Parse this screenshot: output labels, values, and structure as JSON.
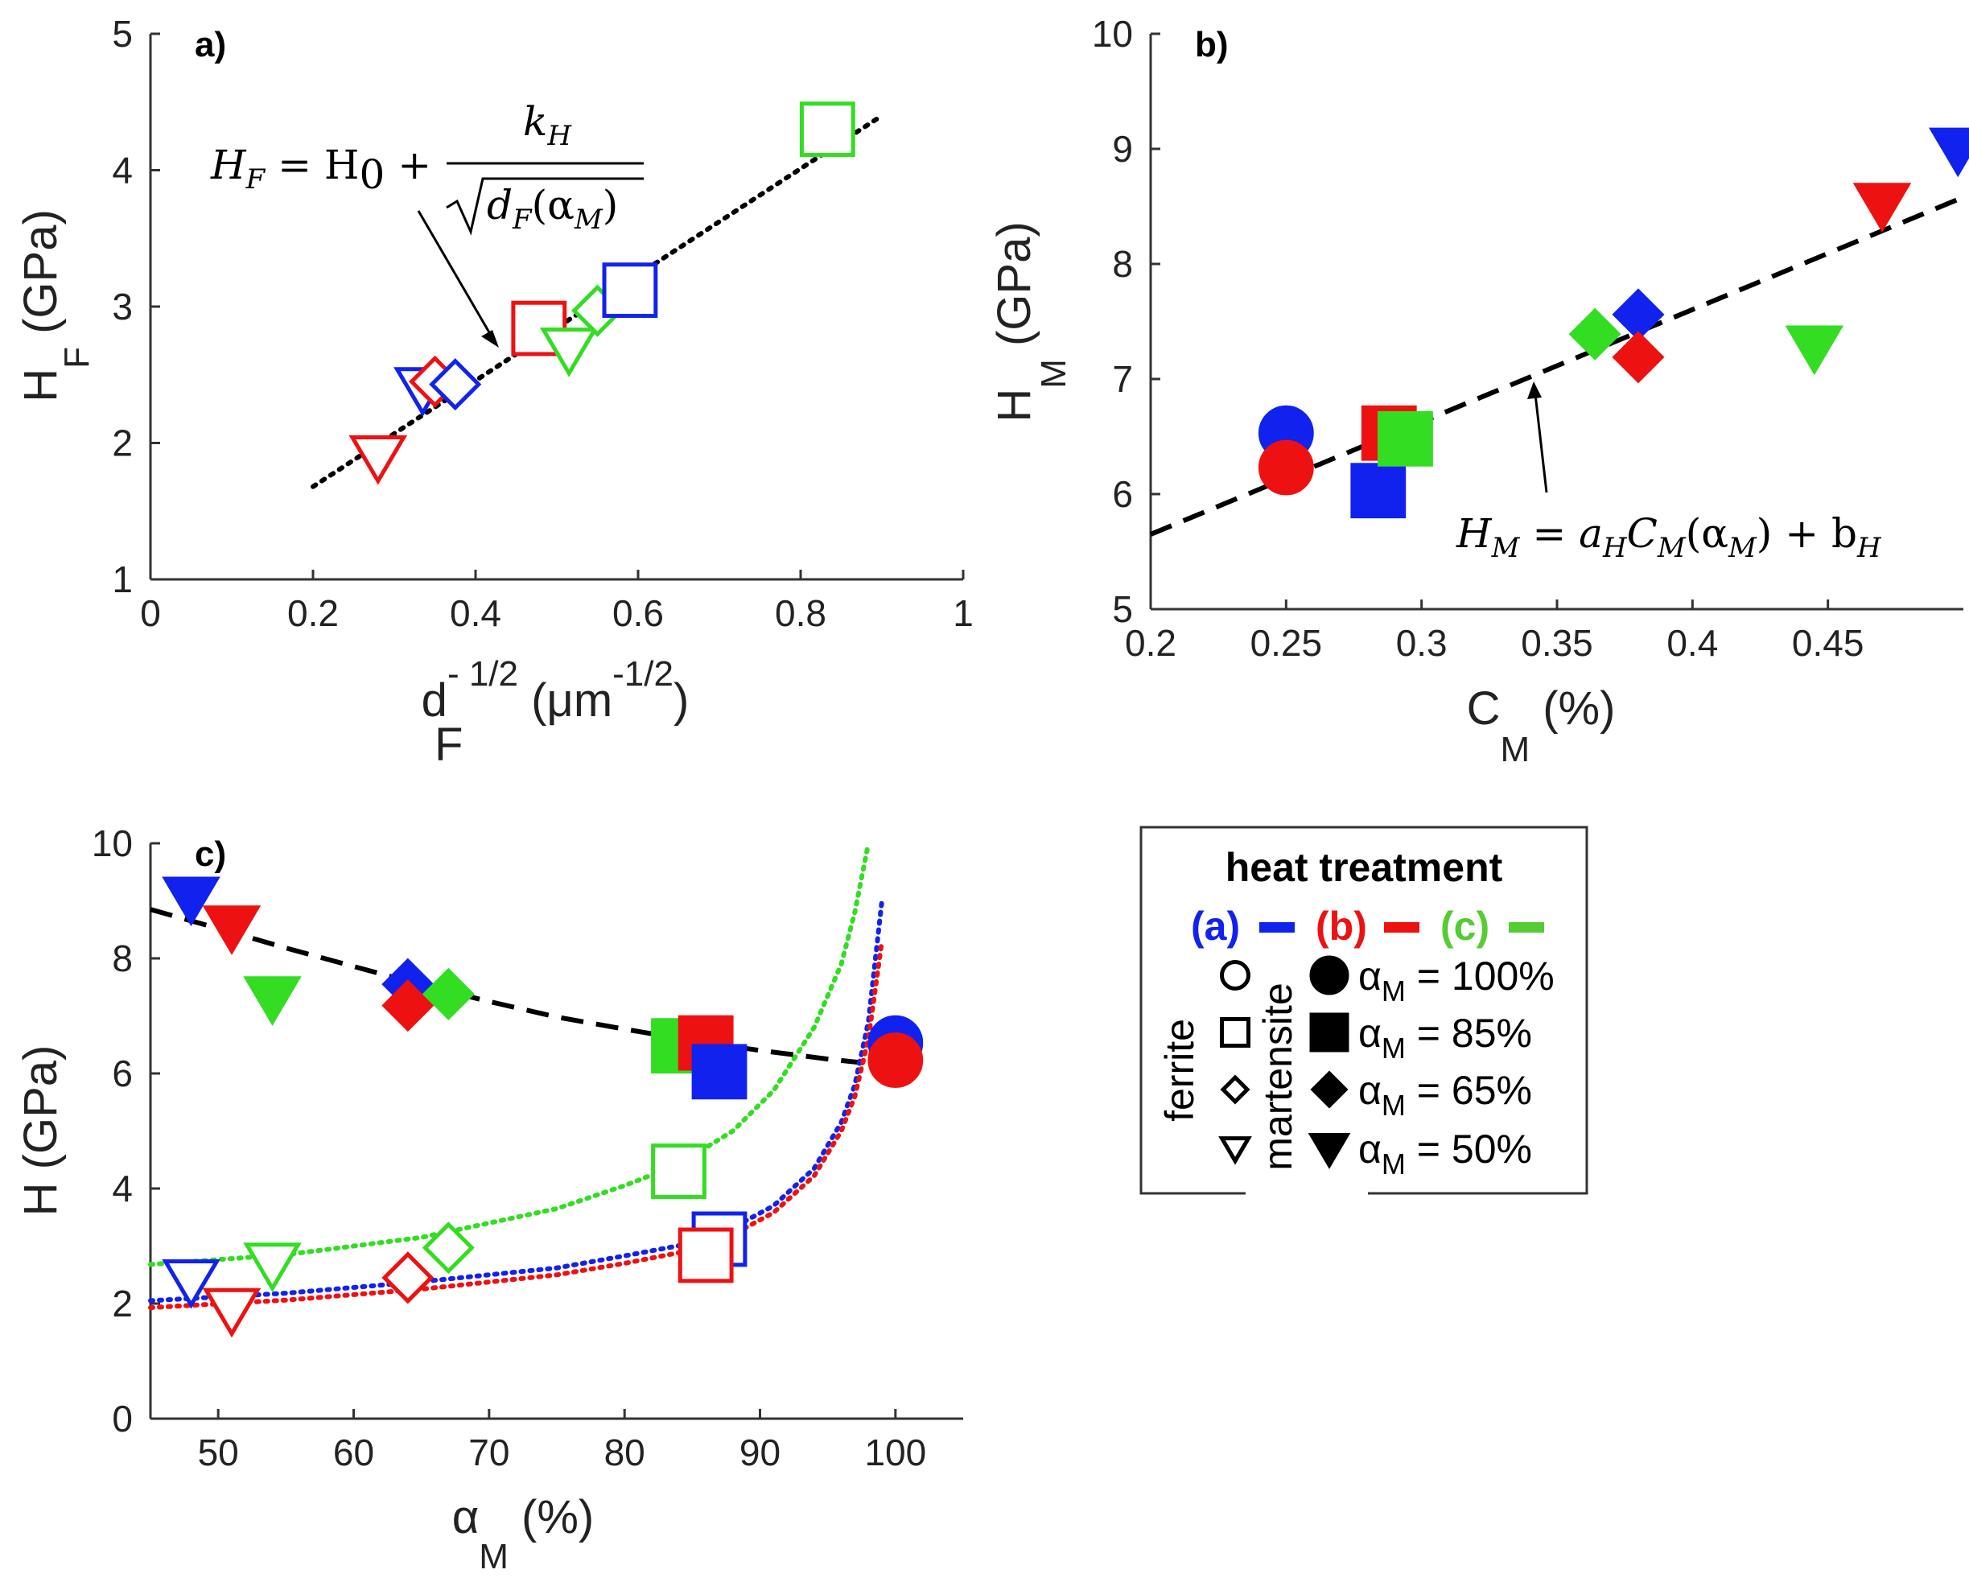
{
  "chart_data": [
    {
      "id": "a",
      "type": "scatter",
      "panel_label": "a)",
      "xlabel": {
        "main": "d",
        "sub": "F",
        "sup": "- 1/2",
        "unit_open": " (μm",
        "unit_sup": "-1/2",
        "unit_close": ")"
      },
      "ylabel": {
        "main": "H",
        "sub": "F",
        "unit": " (GPa)"
      },
      "xlim": [
        0,
        1
      ],
      "ylim": [
        1,
        5
      ],
      "xticks": [
        0,
        0.2,
        0.4,
        0.6,
        0.8,
        1
      ],
      "yticks": [
        1,
        2,
        3,
        4,
        5
      ],
      "xtick_labels": [
        "0",
        "0.2",
        "0.4",
        "0.6",
        "0.8",
        "1"
      ],
      "ytick_labels": [
        "1",
        "2",
        "3",
        "4",
        "5"
      ],
      "fit_line": {
        "style": "dotted",
        "x": [
          0.2,
          0.9
        ],
        "y": [
          1.68,
          4.4
        ]
      },
      "equation": {
        "lhs": "H",
        "lhs_sub": "F",
        "rhs1": " = H",
        "rhs1_sub": "0",
        "plus": " + ",
        "num": "k",
        "num_sub": "H",
        "den": "d",
        "den_sub": "F",
        "den_arg": "(α",
        "den_arg_sub": "M",
        "den_close": ")"
      },
      "points": [
        {
          "x": 0.335,
          "y": 2.4,
          "marker": "triangle-down",
          "fill": "open",
          "treatment": "a"
        },
        {
          "x": 0.35,
          "y": 2.45,
          "marker": "diamond",
          "fill": "open",
          "treatment": "b"
        },
        {
          "x": 0.375,
          "y": 2.43,
          "marker": "diamond",
          "fill": "open",
          "treatment": "a"
        },
        {
          "x": 0.28,
          "y": 1.9,
          "marker": "triangle-down",
          "fill": "open",
          "treatment": "b"
        },
        {
          "x": 0.478,
          "y": 2.84,
          "marker": "square",
          "fill": "open",
          "treatment": "b"
        },
        {
          "x": 0.515,
          "y": 2.69,
          "marker": "triangle-down",
          "fill": "open",
          "treatment": "c"
        },
        {
          "x": 0.55,
          "y": 2.97,
          "marker": "diamond",
          "fill": "open",
          "treatment": "c"
        },
        {
          "x": 0.59,
          "y": 3.12,
          "marker": "square",
          "fill": "open",
          "treatment": "a"
        },
        {
          "x": 0.833,
          "y": 4.3,
          "marker": "square",
          "fill": "open",
          "treatment": "c"
        }
      ]
    },
    {
      "id": "b",
      "type": "scatter",
      "panel_label": "b)",
      "xlabel": {
        "main": "C",
        "sub": "M",
        "unit": " (%)"
      },
      "ylabel": {
        "main": "H",
        "sub": "M",
        "unit": " (GPa)"
      },
      "xlim": [
        0.2,
        0.5
      ],
      "ylim": [
        5,
        10
      ],
      "xticks": [
        0.2,
        0.25,
        0.3,
        0.35,
        0.4,
        0.45
      ],
      "yticks": [
        5,
        6,
        7,
        8,
        9,
        10
      ],
      "xtick_labels": [
        "0.2",
        "0.25",
        "0.3",
        "0.35",
        "0.4",
        "0.45"
      ],
      "ytick_labels": [
        "5",
        "6",
        "7",
        "8",
        "9",
        "10"
      ],
      "fit_line": {
        "style": "dashed",
        "x": [
          0.2,
          0.5
        ],
        "y": [
          5.65,
          8.58
        ]
      },
      "equation": {
        "lhs": "H",
        "lhs_sub": "M",
        "rhs1": " = a",
        "rhs1_sub": "H",
        "mid": "C",
        "mid_sub": "M",
        "arg": "(α",
        "arg_sub": "M",
        "arg_close": ") + b",
        "end_sub": "H"
      },
      "points": [
        {
          "x": 0.25,
          "y": 6.53,
          "marker": "circle",
          "fill": "filled",
          "treatment": "a"
        },
        {
          "x": 0.25,
          "y": 6.23,
          "marker": "circle",
          "fill": "filled",
          "treatment": "b"
        },
        {
          "x": 0.284,
          "y": 6.03,
          "marker": "square",
          "fill": "filled",
          "treatment": "a"
        },
        {
          "x": 0.288,
          "y": 6.53,
          "marker": "square",
          "fill": "filled",
          "treatment": "b"
        },
        {
          "x": 0.294,
          "y": 6.48,
          "marker": "square",
          "fill": "filled",
          "treatment": "c"
        },
        {
          "x": 0.364,
          "y": 7.39,
          "marker": "diamond",
          "fill": "filled",
          "treatment": "c"
        },
        {
          "x": 0.38,
          "y": 7.56,
          "marker": "diamond",
          "fill": "filled",
          "treatment": "a"
        },
        {
          "x": 0.38,
          "y": 7.19,
          "marker": "diamond",
          "fill": "filled",
          "treatment": "b"
        },
        {
          "x": 0.445,
          "y": 7.28,
          "marker": "triangle-down",
          "fill": "filled",
          "treatment": "c"
        },
        {
          "x": 0.47,
          "y": 8.52,
          "marker": "triangle-down",
          "fill": "filled",
          "treatment": "b"
        },
        {
          "x": 0.498,
          "y": 9.0,
          "marker": "triangle-down",
          "fill": "filled",
          "treatment": "a"
        }
      ]
    },
    {
      "id": "c",
      "type": "scatter",
      "panel_label": "c)",
      "xlabel": {
        "main": "α",
        "sub": "M",
        "unit": " (%)"
      },
      "ylabel": {
        "main": "H",
        "sub": "",
        "unit": " (GPa)"
      },
      "xlim": [
        45,
        105
      ],
      "ylim": [
        0,
        10
      ],
      "xticks": [
        50,
        60,
        70,
        80,
        90,
        100
      ],
      "yticks": [
        0,
        2,
        4,
        6,
        8,
        10
      ],
      "xtick_labels": [
        "50",
        "60",
        "70",
        "80",
        "90",
        "100"
      ],
      "ytick_labels": [
        "0",
        "2",
        "4",
        "6",
        "8",
        "10"
      ],
      "curves": [
        {
          "name": "martensite fit",
          "color": "#000000",
          "style": "dashed",
          "x": [
            45,
            50,
            55,
            60,
            65,
            70,
            75,
            80,
            85,
            90,
            95,
            99
          ],
          "y": [
            8.85,
            8.52,
            8.18,
            7.86,
            7.54,
            7.25,
            6.98,
            6.77,
            6.57,
            6.4,
            6.25,
            6.15
          ]
        },
        {
          "name": "ferrite fit (c)",
          "color": "#33dd22",
          "style": "dotted",
          "x": [
            45,
            55,
            65,
            75,
            80,
            84,
            88,
            91,
            94,
            96,
            97,
            98
          ],
          "y": [
            2.68,
            2.85,
            3.15,
            3.65,
            4.05,
            4.42,
            5.0,
            5.7,
            6.8,
            7.9,
            8.8,
            10.0
          ]
        },
        {
          "name": "ferrite fit (a)",
          "color": "#1122ee",
          "style": "dotted",
          "x": [
            45,
            55,
            65,
            75,
            80,
            85,
            88,
            91,
            94,
            96,
            97,
            98,
            99
          ],
          "y": [
            2.05,
            2.18,
            2.38,
            2.62,
            2.83,
            3.05,
            3.32,
            3.7,
            4.35,
            5.15,
            5.8,
            6.9,
            9.0
          ]
        },
        {
          "name": "ferrite fit (b)",
          "color": "#ee1111",
          "style": "dotted",
          "x": [
            45,
            55,
            65,
            75,
            80,
            85,
            88,
            91,
            94,
            96,
            97,
            98,
            99
          ],
          "y": [
            1.93,
            2.06,
            2.25,
            2.5,
            2.7,
            2.93,
            3.2,
            3.58,
            4.22,
            5.0,
            5.6,
            6.6,
            8.3
          ]
        }
      ],
      "points": [
        {
          "x": 48,
          "y": 9.05,
          "marker": "triangle-down",
          "fill": "filled",
          "treatment": "a"
        },
        {
          "x": 51,
          "y": 8.55,
          "marker": "triangle-down",
          "fill": "filled",
          "treatment": "b"
        },
        {
          "x": 54,
          "y": 7.32,
          "marker": "triangle-down",
          "fill": "filled",
          "treatment": "c"
        },
        {
          "x": 64,
          "y": 7.55,
          "marker": "diamond",
          "fill": "filled",
          "treatment": "a"
        },
        {
          "x": 64,
          "y": 7.18,
          "marker": "diamond",
          "fill": "filled",
          "treatment": "b"
        },
        {
          "x": 67,
          "y": 7.38,
          "marker": "diamond",
          "fill": "filled",
          "treatment": "c"
        },
        {
          "x": 84,
          "y": 6.48,
          "marker": "square",
          "fill": "filled",
          "treatment": "c"
        },
        {
          "x": 86,
          "y": 6.53,
          "marker": "square",
          "fill": "filled",
          "treatment": "b"
        },
        {
          "x": 87,
          "y": 6.03,
          "marker": "square",
          "fill": "filled",
          "treatment": "a"
        },
        {
          "x": 100,
          "y": 6.53,
          "marker": "circle",
          "fill": "filled",
          "treatment": "a"
        },
        {
          "x": 100,
          "y": 6.23,
          "marker": "circle",
          "fill": "filled",
          "treatment": "b"
        },
        {
          "x": 48,
          "y": 2.4,
          "marker": "triangle-down",
          "fill": "open",
          "treatment": "a"
        },
        {
          "x": 51,
          "y": 1.9,
          "marker": "triangle-down",
          "fill": "open",
          "treatment": "b"
        },
        {
          "x": 54,
          "y": 2.69,
          "marker": "triangle-down",
          "fill": "open",
          "treatment": "c"
        },
        {
          "x": 64,
          "y": 2.45,
          "marker": "diamond",
          "fill": "open",
          "treatment": "b"
        },
        {
          "x": 67,
          "y": 2.97,
          "marker": "diamond",
          "fill": "open",
          "treatment": "c"
        },
        {
          "x": 84,
          "y": 4.3,
          "marker": "square",
          "fill": "open",
          "treatment": "c"
        },
        {
          "x": 87,
          "y": 3.12,
          "marker": "square",
          "fill": "open",
          "treatment": "a"
        },
        {
          "x": 86,
          "y": 2.84,
          "marker": "square",
          "fill": "open",
          "treatment": "b"
        }
      ]
    }
  ],
  "legend": {
    "title": "heat treatment",
    "treatments": [
      {
        "label": "(a)",
        "color": "#1122ee"
      },
      {
        "label": "(b)",
        "color": "#ee1111"
      },
      {
        "label": "(c)",
        "color": "#55cc33"
      }
    ],
    "ferrite_label": "ferrite",
    "martensite_label": "martensite",
    "fraction_symbol": "α",
    "fraction_sub": "M",
    "entries": [
      {
        "marker": "circle",
        "value": " = 100%"
      },
      {
        "marker": "square",
        "value": " = 85%"
      },
      {
        "marker": "diamond",
        "value": " = 65%"
      },
      {
        "marker": "triangle-down",
        "value": " = 50%"
      }
    ]
  },
  "colors": {
    "a": "#1122ee",
    "b": "#ee1111",
    "c": "#33dd22"
  }
}
